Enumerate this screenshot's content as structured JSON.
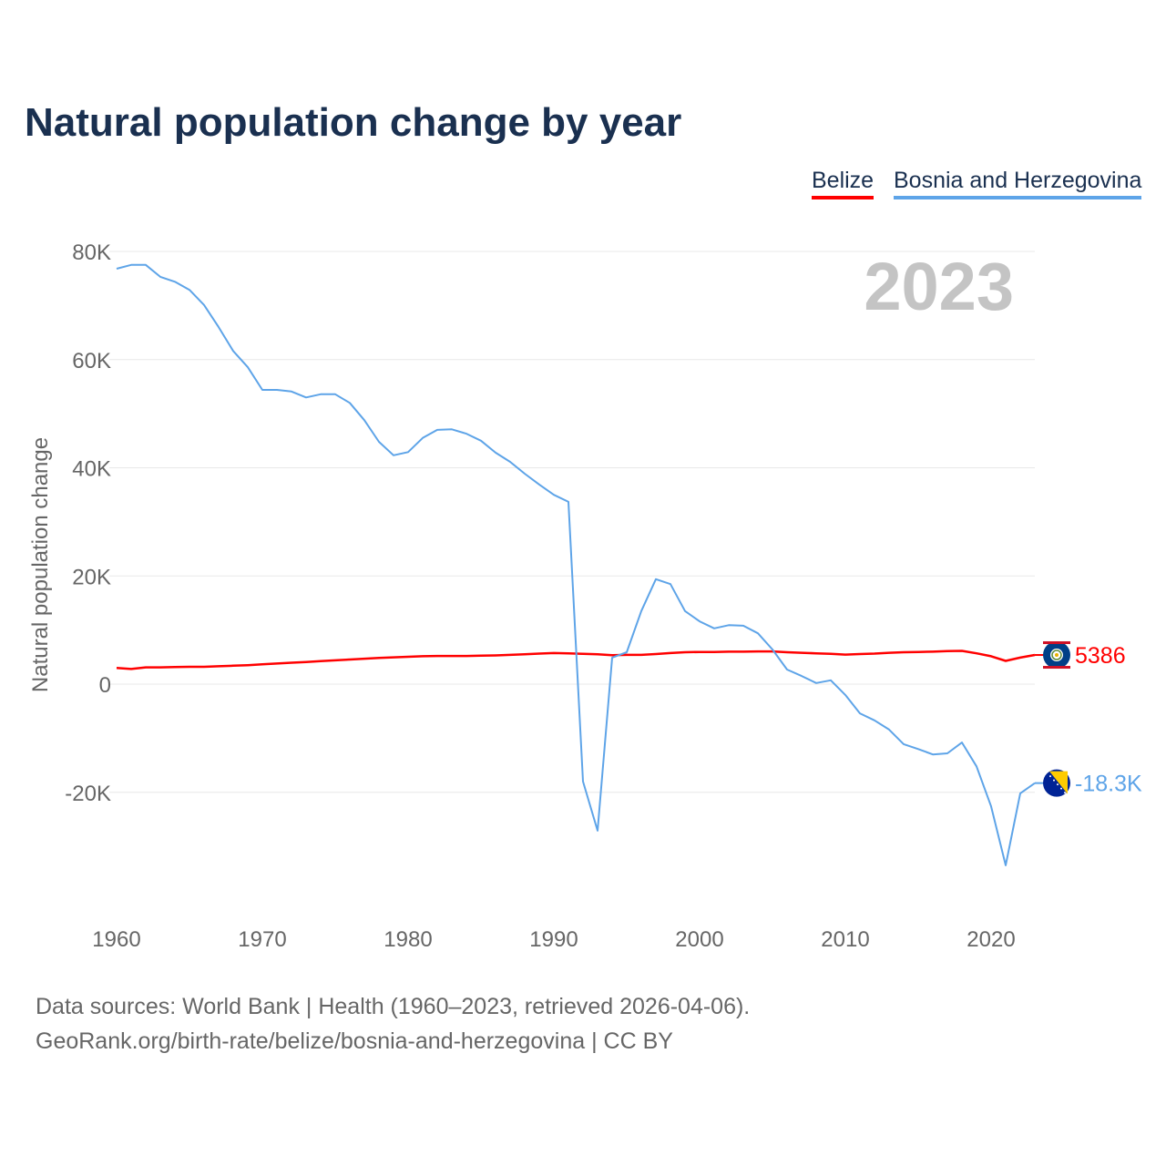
{
  "chart_data": {
    "type": "line",
    "title": "Natural population change by year",
    "ylabel": "Natural population change",
    "xlabel": "",
    "year_label": "2023",
    "xlim": [
      1960,
      2023
    ],
    "ylim": [
      -40000,
      80000
    ],
    "grid": true,
    "legend_position": "top-right",
    "x_ticks": [
      1960,
      1970,
      1980,
      1990,
      2000,
      2010,
      2020
    ],
    "y_ticks": [
      {
        "v": 80000,
        "label": "80K"
      },
      {
        "v": 60000,
        "label": "60K"
      },
      {
        "v": 40000,
        "label": "40K"
      },
      {
        "v": 20000,
        "label": "20K"
      },
      {
        "v": 0,
        "label": "0"
      },
      {
        "v": -20000,
        "label": "-20K"
      }
    ],
    "x_start": 1960,
    "series": [
      {
        "name": "Belize",
        "color": "#ff0000",
        "end_label": "5386",
        "flag": "belize",
        "values": [
          3000,
          2800,
          3100,
          3100,
          3150,
          3200,
          3200,
          3300,
          3400,
          3500,
          3650,
          3800,
          3950,
          4100,
          4250,
          4400,
          4550,
          4700,
          4850,
          4950,
          5050,
          5150,
          5200,
          5200,
          5200,
          5250,
          5300,
          5400,
          5500,
          5650,
          5750,
          5700,
          5600,
          5500,
          5350,
          5400,
          5400,
          5550,
          5750,
          5900,
          5950,
          5950,
          6000,
          6000,
          6050,
          6050,
          5900,
          5800,
          5700,
          5600,
          5450,
          5550,
          5650,
          5800,
          5900,
          5950,
          6000,
          6100,
          6150,
          5700,
          5150,
          4300,
          4900,
          5386
        ]
      },
      {
        "name": "Bosnia and Herzegovina",
        "color": "#5ea4e8",
        "end_label": "-18.3K",
        "flag": "bosnia",
        "values": [
          76800,
          77500,
          77500,
          75300,
          74400,
          72900,
          70100,
          66000,
          61600,
          58600,
          54400,
          54400,
          54100,
          53000,
          53600,
          53600,
          52000,
          48800,
          44800,
          42300,
          42900,
          45500,
          47000,
          47100,
          46300,
          45000,
          42800,
          41100,
          38900,
          36900,
          35000,
          33700,
          -18000,
          -27100,
          4900,
          5900,
          13500,
          19400,
          18500,
          13500,
          11600,
          10300,
          10900,
          10800,
          9400,
          6400,
          2700,
          1500,
          200,
          700,
          -2000,
          -5400,
          -6700,
          -8400,
          -11100,
          -12000,
          -13000,
          -12800,
          -10800,
          -15200,
          -22600,
          -33500,
          -20200,
          -18300
        ]
      }
    ]
  },
  "footer": {
    "line1": "Data sources: World Bank | Health (1960–2023, retrieved 2026-04-06).",
    "line2": "GeoRank.org/birth-rate/belize/bosnia-and-herzegovina | CC BY"
  }
}
